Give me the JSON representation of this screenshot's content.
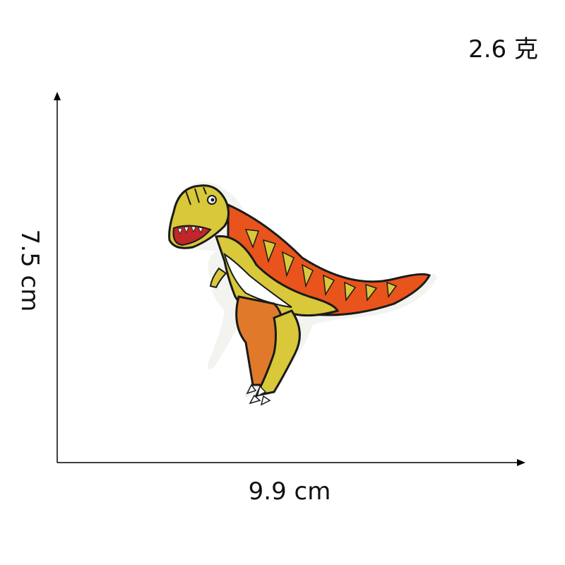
{
  "weight_label": "2.6 克",
  "width_label": "9.9 cm",
  "height_label": "7.5 cm",
  "product": {
    "image_icon": "dinosaur-embroidered-patch-icon",
    "colors": {
      "body": "#d8c83a",
      "stripes": "#e8541c",
      "belly": "#ffffff",
      "outline": "#1a1a1a",
      "mouth": "#c0262a"
    }
  },
  "axis_color": "#000000"
}
